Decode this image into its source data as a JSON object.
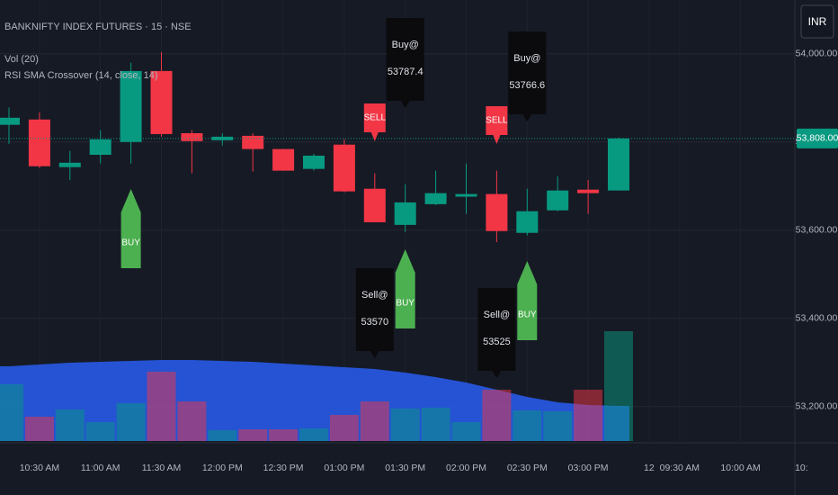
{
  "chart_data": {
    "type": "candlestick",
    "title": "BANKNIFTY INDEX FUTURES · 15 · NSE",
    "indicators": [
      "Vol (20)",
      "RSI SMA Crossover (14, close, 14)"
    ],
    "currency": "INR",
    "categories": [
      null,
      "10:30 AM",
      null,
      "11:00 AM",
      null,
      "11:30 AM",
      null,
      "12:00 PM",
      null,
      "12:30 PM",
      null,
      "01:00 PM",
      null,
      "01:30 PM",
      null,
      "02:00 PM",
      null,
      "02:30 PM",
      null,
      "03:00 PM",
      null,
      "12",
      "09:30 AM",
      null,
      "10:00 AM",
      null,
      "10:"
    ],
    "open": [
      53839,
      53851,
      53743,
      53771,
      53800,
      53961,
      53820,
      53804,
      53814,
      53784,
      53739,
      53794,
      53694,
      53612,
      53659,
      53676,
      53682,
      53594,
      53645,
      53692,
      53690,
      null,
      null,
      null,
      null,
      null,
      null
    ],
    "high": [
      53878,
      53867,
      53780,
      53827,
      53980,
      54004,
      53827,
      53820,
      53820,
      53784,
      53773,
      53806,
      53729,
      53704,
      53735,
      53751,
      53735,
      53694,
      53722,
      53714,
      53810,
      null,
      null,
      null,
      null,
      null,
      null
    ],
    "low": [
      53796,
      53741,
      53714,
      53751,
      53751,
      53812,
      53729,
      53792,
      53733,
      53735,
      53735,
      53686,
      53618,
      53596,
      53657,
      53637,
      53573,
      53588,
      53643,
      53637,
      53690,
      null,
      null,
      null,
      null,
      null,
      null
    ],
    "close": [
      53855,
      53745,
      53753,
      53806,
      53961,
      53818,
      53802,
      53812,
      53784,
      53735,
      53769,
      53688,
      53618,
      53663,
      53684,
      53682,
      53598,
      53643,
      53690,
      53684,
      53808,
      null,
      null,
      null,
      null,
      null,
      null
    ],
    "up_color": "#089981",
    "down_color": "#f23645",
    "volume": [
      63,
      27,
      35,
      21,
      42,
      77,
      44,
      12,
      13,
      13,
      14,
      29,
      44,
      36,
      37,
      21,
      57,
      34,
      33,
      57,
      122,
      null,
      null,
      null,
      null,
      null,
      null
    ],
    "volume_ma": [
      83,
      85,
      87,
      88,
      89,
      90,
      90,
      89,
      88,
      86,
      84,
      82,
      80,
      76,
      71,
      65,
      57,
      49,
      43,
      40,
      39,
      null,
      null,
      null,
      null,
      null,
      null
    ],
    "volume_ma_color": "#2962ff",
    "volume_ylim": [
      0,
      490
    ],
    "ylim": [
      53122,
      54122
    ],
    "yticks": [
      {
        "value": 53200,
        "label": "53,200.00"
      },
      {
        "value": 53400,
        "label": "53,400.00"
      },
      {
        "value": 53600,
        "label": "53,600.00"
      },
      {
        "value": 53800,
        "label": "53,800.00"
      },
      {
        "value": 54000,
        "label": "54,000.00"
      }
    ],
    "grid": true,
    "last_price": {
      "value": 53808,
      "label": "53,808.00"
    },
    "signals": [
      {
        "text": "BUY"
      },
      {
        "text": "SELL"
      },
      {
        "text": "Buy@",
        "price": 53787.4
      },
      {
        "text": "BUY"
      },
      {
        "text": "Sell@",
        "price": 53570
      },
      {
        "text": "SELL"
      },
      {
        "text": "Buy@",
        "price": 53766.6
      },
      {
        "text": "Sell@",
        "price": 53525
      },
      {
        "text": "BUY"
      }
    ]
  }
}
